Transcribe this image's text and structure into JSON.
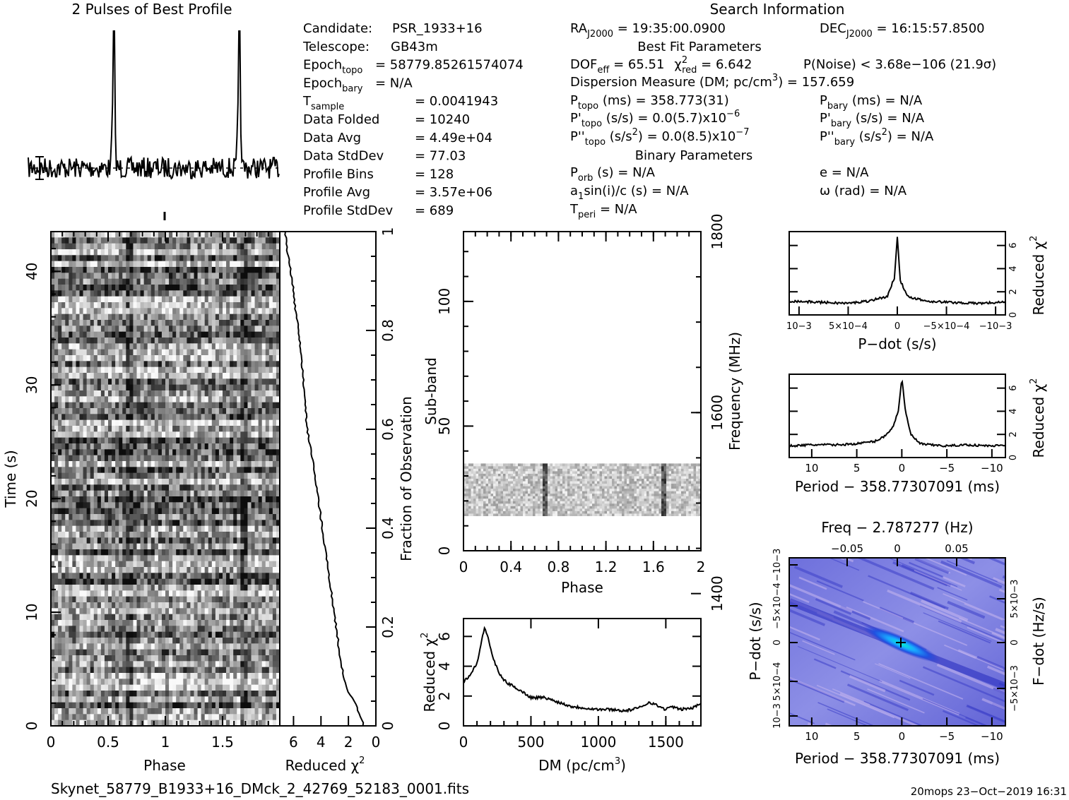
{
  "colors": {
    "ink": "#000000",
    "background": "#ffffff",
    "ppdot_low": "#3333cc",
    "ppdot_mid": "#2a7cff",
    "ppdot_peak": "#00e0c0"
  },
  "icons": [
    "best-fit-cross-icon",
    "error-bar-icon"
  ],
  "header": {
    "profile_title": "2 Pulses of Best Profile",
    "search_title": "Search Information",
    "best_fit_title": "Best Fit Parameters",
    "binary_title": "Binary Parameters"
  },
  "candidate_info": [
    {
      "label": "Candidate:",
      "value": "PSR_1933+16"
    },
    {
      "label": "Telescope:",
      "value": "GB43m"
    },
    {
      "label": "Epoch",
      "sub": "topo",
      "value": "= 58779.85261574074"
    },
    {
      "label": "Epoch",
      "sub": "bary",
      "value": "= N/A"
    },
    {
      "label": "T",
      "sub": "sample",
      "value": "=  0.0041943"
    },
    {
      "label": "Data Folded",
      "value": "=  10240"
    },
    {
      "label": "Data Avg",
      "value": "=  4.49e+04"
    },
    {
      "label": "Data StdDev",
      "value": "=  77.03"
    },
    {
      "label": "Profile Bins",
      "value": "=  128"
    },
    {
      "label": "Profile Avg",
      "value": "=  3.57e+06"
    },
    {
      "label": "Profile StdDev",
      "value": "=  689"
    }
  ],
  "search": {
    "ra": {
      "label": "RA",
      "sub": "J2000",
      "value": " = 19:35:00.0900"
    },
    "dec": {
      "label": "DEC",
      "sub": "J2000",
      "value": " = 16:15:57.8500"
    }
  },
  "best_fit": {
    "dof": "DOF",
    "dof_sub": "eff",
    "dof_value": " = 65.51",
    "chi": "χ",
    "chi_sup": "2",
    "chi_sub": "red",
    "chi_value": " = 6.642",
    "pnoise": "P(Noise) < 3.68e−106  (21.9σ)",
    "dm_line": "Dispersion Measure (DM; pc/cm",
    "dm_sup": "3",
    "dm_value": ") = 157.659",
    "ptopo": {
      "label": "P",
      "sub": "topo",
      "value": " (ms) =  358.773(31)"
    },
    "pdtopo": {
      "label": "P'",
      "sub": "topo",
      "value": " (s/s) = 0.0(5.7)x10",
      "sup": "−6"
    },
    "pddtopo": {
      "label": "P''",
      "sub": "topo",
      "value": " (s/s",
      "sup1": "2",
      "value2": ") = 0.0(8.5)x10",
      "sup2": "−7"
    },
    "pbary": {
      "label": "P",
      "sub": "bary",
      "value": " (ms) = N/A"
    },
    "pdbary": {
      "label": "P'",
      "sub": "bary",
      "value": " (s/s) = N/A"
    },
    "pddbary": {
      "label": "P''",
      "sub": "bary",
      "value": " (s/s",
      "sup1": "2",
      "value2": ") = N/A"
    }
  },
  "binary": {
    "porb": {
      "label": "P",
      "sub": "orb",
      "value": " (s) = N/A"
    },
    "asini": {
      "label": "a",
      "sub": "1",
      "value": "sin(i)/c (s) = N/A"
    },
    "tperi": {
      "label": "T",
      "sub": "peri",
      "value": " = N/A"
    },
    "e": "e = N/A",
    "omega": "ω (rad) = N/A"
  },
  "footer": {
    "filename": "Skynet_58779_B1933+16_DMck_2_42769_52183_0001.fits",
    "stamp": "20mops 23−Oct−2019 16:31"
  },
  "chart_data": [
    {
      "type": "line",
      "panel": "profile",
      "title": "2 Pulses of Best Profile",
      "x_range": [
        0,
        2
      ],
      "peaks_at_phase": [
        0.68,
        1.68
      ],
      "bins_per_pulse": 128
    },
    {
      "type": "heatmap",
      "panel": "time-phase",
      "xlabel": "Phase",
      "ylabel": "Time (s)",
      "xlim": [
        0,
        2
      ],
      "ylim": [
        0,
        43.5
      ],
      "x_ticks": [
        "0",
        "0.5",
        "1",
        "1.5"
      ],
      "y_ticks": [
        "0",
        "10",
        "20",
        "30",
        "40"
      ]
    },
    {
      "type": "line",
      "panel": "time-chi2",
      "xlabel": "Reduced χ2",
      "ylabel": "Fraction of Observation",
      "x_ticks": [
        "6",
        "4",
        "2",
        "0"
      ],
      "y_ticks": [
        "0",
        "0.2",
        "0.4",
        "0.6",
        "0.8",
        "1"
      ],
      "xlim": [
        7,
        0
      ],
      "ylim": [
        0,
        1
      ],
      "fraction": [
        0,
        0.02,
        0.05,
        0.08,
        0.12,
        0.2,
        0.3,
        0.4,
        0.5,
        0.6,
        0.7,
        0.8,
        0.85,
        0.9,
        0.95,
        1.0
      ],
      "reduced_chi2": [
        0.9,
        1.1,
        1.6,
        2.2,
        2.5,
        2.9,
        3.4,
        3.9,
        4.4,
        5.0,
        5.3,
        5.6,
        5.9,
        6.1,
        6.4,
        6.6
      ]
    },
    {
      "type": "heatmap",
      "panel": "subband-phase",
      "xlabel": "Phase",
      "ylabel": "Sub-band",
      "y2label": "Frequency (MHz)",
      "xlim": [
        0,
        2
      ],
      "ylim": [
        0,
        128
      ],
      "x_ticks": [
        "0",
        "0.4",
        "0.8",
        "1.2",
        "1.6",
        "2"
      ],
      "y_ticks": [
        "0",
        "50",
        "100"
      ],
      "y2_ticks": [
        "1400",
        "1600",
        "1800"
      ],
      "occupied_subbands": [
        14,
        35
      ]
    },
    {
      "type": "line",
      "panel": "dm-chi2",
      "xlabel": "DM (pc/cm3)",
      "ylabel": "Reduced χ2",
      "xlim": [
        0,
        1760
      ],
      "ylim": [
        0,
        7.2
      ],
      "x_ticks": [
        "0",
        "500",
        "1000",
        "1500"
      ],
      "y_ticks": [
        "0",
        "2",
        "4",
        "6"
      ],
      "x": [
        0,
        50,
        100,
        130,
        157,
        180,
        220,
        270,
        320,
        400,
        450,
        500,
        600,
        700,
        800,
        900,
        1000,
        1100,
        1200,
        1300,
        1380,
        1450,
        1500,
        1550,
        1600,
        1700,
        1760
      ],
      "y": [
        3.0,
        3.4,
        4.2,
        5.5,
        6.6,
        6.0,
        4.5,
        3.4,
        2.9,
        2.5,
        2.2,
        1.9,
        1.9,
        1.6,
        1.3,
        1.2,
        1.1,
        1.1,
        1.0,
        1.2,
        1.6,
        1.3,
        1.1,
        1.3,
        1.1,
        1.2,
        1.5
      ]
    },
    {
      "type": "line",
      "panel": "pdot-chi2",
      "xlabel": "P−dot (s/s)",
      "ylabel": "Reduced χ2",
      "xlim": [
        0.0011,
        -0.0011
      ],
      "ylim": [
        0,
        7.2
      ],
      "x_ticks": [
        "10−3",
        "5×10−4",
        "0",
        "−5×10−4",
        "−10−3"
      ],
      "y_ticks": [
        "0",
        "2",
        "4",
        "6"
      ],
      "x": [
        0.0011,
        0.0008,
        0.0005,
        0.0003,
        0.0001,
        3e-05,
        0.0,
        -3e-05,
        -0.0001,
        -0.0003,
        -0.0005,
        -0.0008,
        -0.0011
      ],
      "y": [
        1.2,
        1.1,
        1.0,
        1.2,
        1.6,
        3.2,
        6.8,
        3.0,
        1.6,
        1.2,
        1.1,
        1.0,
        1.1
      ]
    },
    {
      "type": "line",
      "panel": "period-chi2",
      "xlabel": "Period − 358.77307091 (ms)",
      "ylabel": "Reduced χ2",
      "xlim": [
        12.5,
        -11.5
      ],
      "ylim": [
        0,
        7.2
      ],
      "x_ticks": [
        "10",
        "5",
        "0",
        "−5",
        "−10"
      ],
      "y_ticks": [
        "0",
        "2",
        "4",
        "6"
      ],
      "x": [
        12.5,
        10,
        7,
        5,
        3,
        2,
        1,
        0.4,
        0,
        -0.4,
        -1,
        -2,
        -3,
        -5,
        -7,
        -10,
        -11.5
      ],
      "y": [
        1.0,
        1.1,
        1.1,
        1.2,
        1.4,
        1.8,
        2.6,
        4.0,
        6.9,
        4.0,
        2.0,
        1.2,
        1.1,
        1.0,
        1.1,
        1.0,
        1.1
      ]
    },
    {
      "type": "heatmap",
      "panel": "p-pdot",
      "xlabel": "Period − 358.77307091 (ms)",
      "ylabel": "P−dot (s/s)",
      "x2label": "Freq − 2.787277 (Hz)",
      "y2label": "F−dot (Hz/s)",
      "xlim": [
        12.5,
        -11.5
      ],
      "x_ticks": [
        "10",
        "5",
        "0",
        "−5",
        "−10"
      ],
      "x2_ticks": [
        "−0.05",
        "0",
        "0.05"
      ],
      "y_ticks": [
        "10−3",
        "5×10−4",
        "0",
        "−5×10−4",
        "−10−3"
      ],
      "y2_ticks": [
        "5×10−3",
        "0",
        "−5×10−3"
      ],
      "best_fit": [
        0,
        0
      ]
    }
  ]
}
